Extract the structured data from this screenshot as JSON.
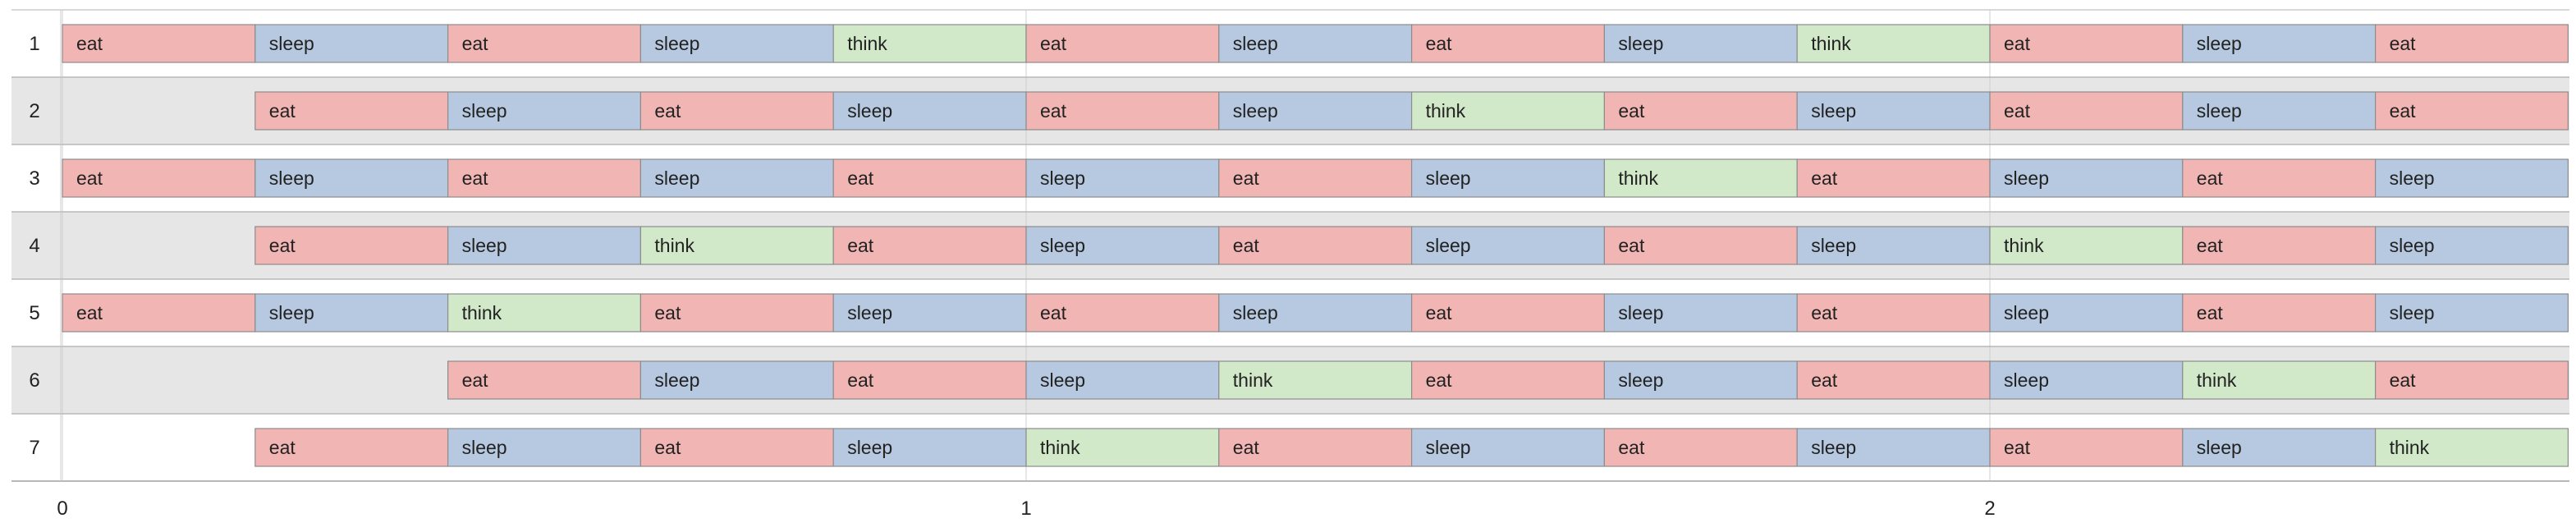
{
  "chart_data": {
    "type": "timeline",
    "x_range": [
      0,
      2.6
    ],
    "x_ticks": [
      "0",
      "1",
      "2"
    ],
    "colors": {
      "eat": "#f1b5b3",
      "sleep": "#b6c9e0",
      "think": "#d1e9c8"
    },
    "rows": [
      {
        "label": "1",
        "tasks": [
          {
            "name": "eat",
            "start": 0,
            "end": 0.2
          },
          {
            "name": "sleep",
            "start": 0.2,
            "end": 0.4
          },
          {
            "name": "eat",
            "start": 0.4,
            "end": 0.6
          },
          {
            "name": "sleep",
            "start": 0.6,
            "end": 0.8
          },
          {
            "name": "think",
            "start": 0.8,
            "end": 1.0
          },
          {
            "name": "eat",
            "start": 1.0,
            "end": 1.2
          },
          {
            "name": "sleep",
            "start": 1.2,
            "end": 1.4
          },
          {
            "name": "eat",
            "start": 1.4,
            "end": 1.6
          },
          {
            "name": "sleep",
            "start": 1.6,
            "end": 1.8
          },
          {
            "name": "think",
            "start": 1.8,
            "end": 2.0
          },
          {
            "name": "eat",
            "start": 2.0,
            "end": 2.2
          },
          {
            "name": "sleep",
            "start": 2.2,
            "end": 2.4
          },
          {
            "name": "eat",
            "start": 2.4,
            "end": 2.6
          }
        ]
      },
      {
        "label": "2",
        "tasks": [
          {
            "name": "eat",
            "start": 0.2,
            "end": 0.4
          },
          {
            "name": "sleep",
            "start": 0.4,
            "end": 0.6
          },
          {
            "name": "eat",
            "start": 0.6,
            "end": 0.8
          },
          {
            "name": "sleep",
            "start": 0.8,
            "end": 1.0
          },
          {
            "name": "eat",
            "start": 1.0,
            "end": 1.2
          },
          {
            "name": "sleep",
            "start": 1.2,
            "end": 1.4
          },
          {
            "name": "think",
            "start": 1.4,
            "end": 1.6
          },
          {
            "name": "eat",
            "start": 1.6,
            "end": 1.8
          },
          {
            "name": "sleep",
            "start": 1.8,
            "end": 2.0
          },
          {
            "name": "eat",
            "start": 2.0,
            "end": 2.2
          },
          {
            "name": "sleep",
            "start": 2.2,
            "end": 2.4
          },
          {
            "name": "eat",
            "start": 2.4,
            "end": 2.6
          }
        ]
      },
      {
        "label": "3",
        "tasks": [
          {
            "name": "eat",
            "start": 0,
            "end": 0.2
          },
          {
            "name": "sleep",
            "start": 0.2,
            "end": 0.4
          },
          {
            "name": "eat",
            "start": 0.4,
            "end": 0.6
          },
          {
            "name": "sleep",
            "start": 0.6,
            "end": 0.8
          },
          {
            "name": "eat",
            "start": 0.8,
            "end": 1.0
          },
          {
            "name": "sleep",
            "start": 1.0,
            "end": 1.2
          },
          {
            "name": "eat",
            "start": 1.2,
            "end": 1.4
          },
          {
            "name": "sleep",
            "start": 1.4,
            "end": 1.6
          },
          {
            "name": "think",
            "start": 1.6,
            "end": 1.8
          },
          {
            "name": "eat",
            "start": 1.8,
            "end": 2.0
          },
          {
            "name": "sleep",
            "start": 2.0,
            "end": 2.2
          },
          {
            "name": "eat",
            "start": 2.2,
            "end": 2.4
          },
          {
            "name": "sleep",
            "start": 2.4,
            "end": 2.6
          }
        ]
      },
      {
        "label": "4",
        "tasks": [
          {
            "name": "eat",
            "start": 0.2,
            "end": 0.4
          },
          {
            "name": "sleep",
            "start": 0.4,
            "end": 0.6
          },
          {
            "name": "think",
            "start": 0.6,
            "end": 0.8
          },
          {
            "name": "eat",
            "start": 0.8,
            "end": 1.0
          },
          {
            "name": "sleep",
            "start": 1.0,
            "end": 1.2
          },
          {
            "name": "eat",
            "start": 1.2,
            "end": 1.4
          },
          {
            "name": "sleep",
            "start": 1.4,
            "end": 1.6
          },
          {
            "name": "eat",
            "start": 1.6,
            "end": 1.8
          },
          {
            "name": "sleep",
            "start": 1.8,
            "end": 2.0
          },
          {
            "name": "think",
            "start": 2.0,
            "end": 2.2
          },
          {
            "name": "eat",
            "start": 2.2,
            "end": 2.4
          },
          {
            "name": "sleep",
            "start": 2.4,
            "end": 2.6
          }
        ]
      },
      {
        "label": "5",
        "tasks": [
          {
            "name": "eat",
            "start": 0,
            "end": 0.2
          },
          {
            "name": "sleep",
            "start": 0.2,
            "end": 0.4
          },
          {
            "name": "think",
            "start": 0.4,
            "end": 0.6
          },
          {
            "name": "eat",
            "start": 0.6,
            "end": 0.8
          },
          {
            "name": "sleep",
            "start": 0.8,
            "end": 1.0
          },
          {
            "name": "eat",
            "start": 1.0,
            "end": 1.2
          },
          {
            "name": "sleep",
            "start": 1.2,
            "end": 1.4
          },
          {
            "name": "eat",
            "start": 1.4,
            "end": 1.6
          },
          {
            "name": "sleep",
            "start": 1.6,
            "end": 1.8
          },
          {
            "name": "eat",
            "start": 1.8,
            "end": 2.0
          },
          {
            "name": "sleep",
            "start": 2.0,
            "end": 2.2
          },
          {
            "name": "eat",
            "start": 2.2,
            "end": 2.4
          },
          {
            "name": "sleep",
            "start": 2.4,
            "end": 2.6
          }
        ]
      },
      {
        "label": "6",
        "tasks": [
          {
            "name": "eat",
            "start": 0.4,
            "end": 0.6
          },
          {
            "name": "sleep",
            "start": 0.6,
            "end": 0.8
          },
          {
            "name": "eat",
            "start": 0.8,
            "end": 1.0
          },
          {
            "name": "sleep",
            "start": 1.0,
            "end": 1.2
          },
          {
            "name": "think",
            "start": 1.2,
            "end": 1.4
          },
          {
            "name": "eat",
            "start": 1.4,
            "end": 1.6
          },
          {
            "name": "sleep",
            "start": 1.6,
            "end": 1.8
          },
          {
            "name": "eat",
            "start": 1.8,
            "end": 2.0
          },
          {
            "name": "sleep",
            "start": 2.0,
            "end": 2.2
          },
          {
            "name": "think",
            "start": 2.2,
            "end": 2.4
          },
          {
            "name": "eat",
            "start": 2.4,
            "end": 2.6
          }
        ]
      },
      {
        "label": "7",
        "tasks": [
          {
            "name": "eat",
            "start": 0.2,
            "end": 0.4
          },
          {
            "name": "sleep",
            "start": 0.4,
            "end": 0.6
          },
          {
            "name": "eat",
            "start": 0.6,
            "end": 0.8
          },
          {
            "name": "sleep",
            "start": 0.8,
            "end": 1.0
          },
          {
            "name": "think",
            "start": 1.0,
            "end": 1.2
          },
          {
            "name": "eat",
            "start": 1.2,
            "end": 1.4
          },
          {
            "name": "sleep",
            "start": 1.4,
            "end": 1.6
          },
          {
            "name": "eat",
            "start": 1.6,
            "end": 1.8
          },
          {
            "name": "sleep",
            "start": 1.8,
            "end": 2.0
          },
          {
            "name": "eat",
            "start": 2.0,
            "end": 2.2
          },
          {
            "name": "sleep",
            "start": 2.2,
            "end": 2.4
          },
          {
            "name": "think",
            "start": 2.4,
            "end": 2.6
          }
        ]
      }
    ]
  }
}
